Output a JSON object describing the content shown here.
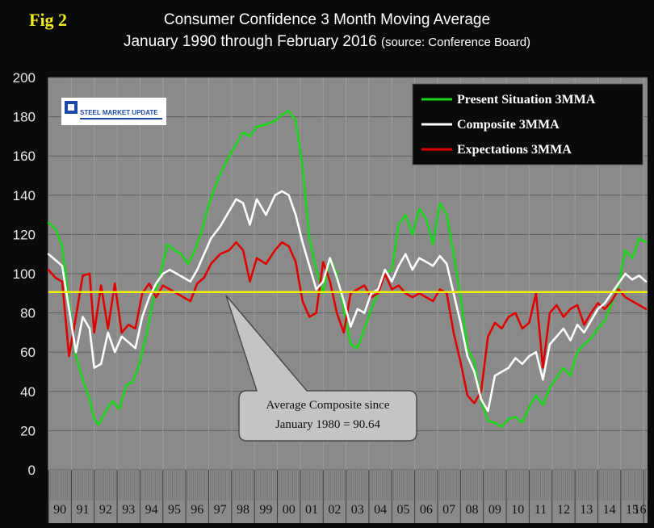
{
  "figure_label": "Fig 2",
  "logo": {
    "text": "STEEL MARKET UPDATE"
  },
  "callout": {
    "line1": "Average Composite since",
    "line2": "January 1980 = 90.64"
  },
  "colors": {
    "background": "#0a0a0a",
    "plot_area": "#8a8a8a",
    "present": "#19d619",
    "composite": "#ffffff",
    "expectations": "#e00000",
    "average_line": "#f5f000",
    "fig_label": "#f2ec1b",
    "callout_fill": "#c4c4c4"
  },
  "chart_data": {
    "type": "line",
    "title": "Consumer Confidence 3 Month Moving Average",
    "subtitle_main": "January 1990 through February 2016",
    "subtitle_source": "(source: Conference Board)",
    "xlabel": "",
    "ylabel": "",
    "ylim": [
      0,
      200
    ],
    "yticks": [
      0,
      20,
      40,
      60,
      80,
      100,
      120,
      140,
      160,
      180,
      200
    ],
    "xlim": [
      1990,
      2016.17
    ],
    "x_tick_labels": [
      "90",
      "91",
      "92",
      "93",
      "94",
      "95",
      "96",
      "97",
      "98",
      "99",
      "00",
      "01",
      "02",
      "03",
      "04",
      "05",
      "06",
      "07",
      "08",
      "09",
      "10",
      "11",
      "12",
      "13",
      "14",
      "15",
      "16"
    ],
    "reference_line": {
      "value": 90.64,
      "label": "Average Composite since January 1980 = 90.64"
    },
    "legend_position": "top-right",
    "series": [
      {
        "name": "Present Situation 3MMA",
        "x": [
          1990.0,
          1990.3,
          1990.6,
          1990.9,
          1991.2,
          1991.5,
          1991.8,
          1992.0,
          1992.2,
          1992.5,
          1992.8,
          1993.1,
          1993.4,
          1993.7,
          1994.0,
          1994.3,
          1994.6,
          1994.9,
          1995.2,
          1995.5,
          1995.8,
          1996.1,
          1996.4,
          1996.7,
          1997.0,
          1997.4,
          1997.8,
          1998.2,
          1998.5,
          1998.8,
          1999.1,
          1999.5,
          1999.9,
          2000.2,
          2000.5,
          2000.8,
          2001.1,
          2001.4,
          2001.7,
          2002.0,
          2002.3,
          2002.6,
          2002.9,
          2003.2,
          2003.5,
          2003.8,
          2004.1,
          2004.4,
          2004.7,
          2005.0,
          2005.3,
          2005.6,
          2005.9,
          2006.2,
          2006.5,
          2006.8,
          2007.1,
          2007.4,
          2007.7,
          2008.0,
          2008.3,
          2008.6,
          2008.9,
          2009.2,
          2009.5,
          2009.8,
          2010.1,
          2010.4,
          2010.7,
          2011.0,
          2011.3,
          2011.6,
          2011.9,
          2012.2,
          2012.5,
          2012.8,
          2013.1,
          2013.4,
          2013.7,
          2014.0,
          2014.3,
          2014.6,
          2014.9,
          2015.2,
          2015.5,
          2015.8,
          2016.1
        ],
        "values": [
          126,
          123,
          114,
          85,
          58,
          46,
          36,
          26,
          23,
          30,
          35,
          31,
          43,
          45,
          55,
          70,
          88,
          100,
          115,
          112,
          110,
          105,
          112,
          122,
          135,
          148,
          158,
          166,
          172,
          170,
          175,
          176,
          178,
          181,
          183,
          178,
          155,
          118,
          102,
          90,
          108,
          100,
          82,
          64,
          62,
          72,
          82,
          90,
          100,
          102,
          125,
          130,
          120,
          133,
          128,
          115,
          136,
          130,
          110,
          88,
          62,
          55,
          35,
          25,
          24,
          22,
          26,
          27,
          24,
          32,
          38,
          33,
          42,
          47,
          52,
          48,
          60,
          64,
          67,
          72,
          76,
          85,
          94,
          112,
          108,
          118,
          116
        ]
      },
      {
        "name": "Composite 3MMA",
        "x": [
          1990.0,
          1990.3,
          1990.6,
          1990.9,
          1991.2,
          1991.5,
          1991.8,
          1992.0,
          1992.3,
          1992.6,
          1992.9,
          1993.2,
          1993.5,
          1993.8,
          1994.1,
          1994.4,
          1994.7,
          1995.0,
          1995.3,
          1995.6,
          1995.9,
          1996.2,
          1996.5,
          1996.8,
          1997.1,
          1997.5,
          1997.9,
          1998.2,
          1998.5,
          1998.8,
          1999.1,
          1999.5,
          1999.9,
          2000.2,
          2000.5,
          2000.8,
          2001.1,
          2001.4,
          2001.7,
          2002.0,
          2002.3,
          2002.6,
          2002.9,
          2003.2,
          2003.5,
          2003.8,
          2004.1,
          2004.4,
          2004.7,
          2005.0,
          2005.3,
          2005.6,
          2005.9,
          2006.2,
          2006.5,
          2006.8,
          2007.1,
          2007.4,
          2007.7,
          2008.0,
          2008.3,
          2008.6,
          2008.9,
          2009.2,
          2009.5,
          2009.8,
          2010.1,
          2010.4,
          2010.7,
          2011.0,
          2011.3,
          2011.6,
          2011.9,
          2012.2,
          2012.5,
          2012.8,
          2013.1,
          2013.4,
          2013.7,
          2014.0,
          2014.3,
          2014.6,
          2014.9,
          2015.2,
          2015.5,
          2015.8,
          2016.1
        ],
        "values": [
          110,
          107,
          104,
          82,
          60,
          78,
          72,
          52,
          54,
          70,
          60,
          68,
          65,
          62,
          78,
          88,
          95,
          100,
          102,
          100,
          98,
          96,
          102,
          110,
          118,
          124,
          132,
          138,
          136,
          125,
          138,
          130,
          140,
          142,
          140,
          130,
          116,
          104,
          92,
          96,
          108,
          98,
          86,
          73,
          82,
          80,
          90,
          92,
          102,
          96,
          104,
          110,
          102,
          108,
          106,
          104,
          109,
          105,
          90,
          75,
          58,
          50,
          36,
          30,
          48,
          50,
          52,
          57,
          54,
          58,
          60,
          46,
          64,
          68,
          72,
          66,
          74,
          70,
          76,
          82,
          85,
          90,
          95,
          100,
          97,
          99,
          96
        ]
      },
      {
        "name": "Expectations 3MMA",
        "x": [
          1990.0,
          1990.3,
          1990.6,
          1990.9,
          1991.2,
          1991.5,
          1991.8,
          1992.0,
          1992.3,
          1992.6,
          1992.9,
          1993.2,
          1993.5,
          1993.8,
          1994.1,
          1994.4,
          1994.7,
          1995.0,
          1995.3,
          1995.6,
          1995.9,
          1996.2,
          1996.5,
          1996.8,
          1997.1,
          1997.5,
          1997.9,
          1998.2,
          1998.5,
          1998.8,
          1999.1,
          1999.5,
          1999.9,
          2000.2,
          2000.5,
          2000.8,
          2001.1,
          2001.4,
          2001.7,
          2002.0,
          2002.3,
          2002.6,
          2002.9,
          2003.2,
          2003.5,
          2003.8,
          2004.1,
          2004.4,
          2004.7,
          2005.0,
          2005.3,
          2005.6,
          2005.9,
          2006.2,
          2006.5,
          2006.8,
          2007.1,
          2007.4,
          2007.7,
          2008.0,
          2008.3,
          2008.6,
          2008.9,
          2009.2,
          2009.5,
          2009.8,
          2010.1,
          2010.4,
          2010.7,
          2011.0,
          2011.3,
          2011.6,
          2011.9,
          2012.2,
          2012.5,
          2012.8,
          2013.1,
          2013.4,
          2013.7,
          2014.0,
          2014.3,
          2014.6,
          2014.9,
          2015.2,
          2015.5,
          2015.8,
          2016.1
        ],
        "values": [
          102,
          98,
          96,
          58,
          78,
          99,
          100,
          70,
          94,
          72,
          95,
          70,
          74,
          72,
          90,
          95,
          88,
          94,
          92,
          90,
          88,
          86,
          95,
          98,
          105,
          110,
          112,
          116,
          112,
          96,
          108,
          105,
          112,
          116,
          114,
          106,
          86,
          78,
          80,
          106,
          96,
          80,
          70,
          90,
          92,
          94,
          88,
          90,
          100,
          92,
          94,
          90,
          88,
          90,
          88,
          86,
          92,
          90,
          70,
          55,
          38,
          34,
          40,
          68,
          75,
          72,
          78,
          80,
          72,
          75,
          90,
          52,
          80,
          84,
          78,
          82,
          84,
          74,
          80,
          85,
          82,
          86,
          92,
          88,
          86,
          84,
          82
        ]
      }
    ]
  }
}
